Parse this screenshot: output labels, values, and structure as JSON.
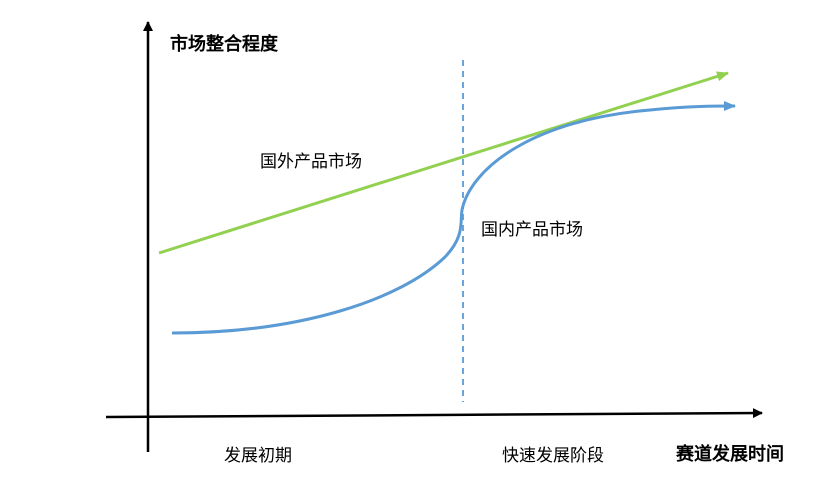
{
  "diagram": {
    "y_axis_label": "市场整合程度",
    "x_axis_label": "赛道发展时间",
    "curve_labels": {
      "foreign": "国外产品市场",
      "domestic": "国内产品市场"
    },
    "phase_labels": {
      "early": "发展初期",
      "rapid": "快速发展阶段"
    }
  },
  "colors": {
    "axis": "#000000",
    "foreign_line": "#92d050",
    "domestic_line": "#5b9bd5",
    "divider": "#5b9bd5"
  }
}
